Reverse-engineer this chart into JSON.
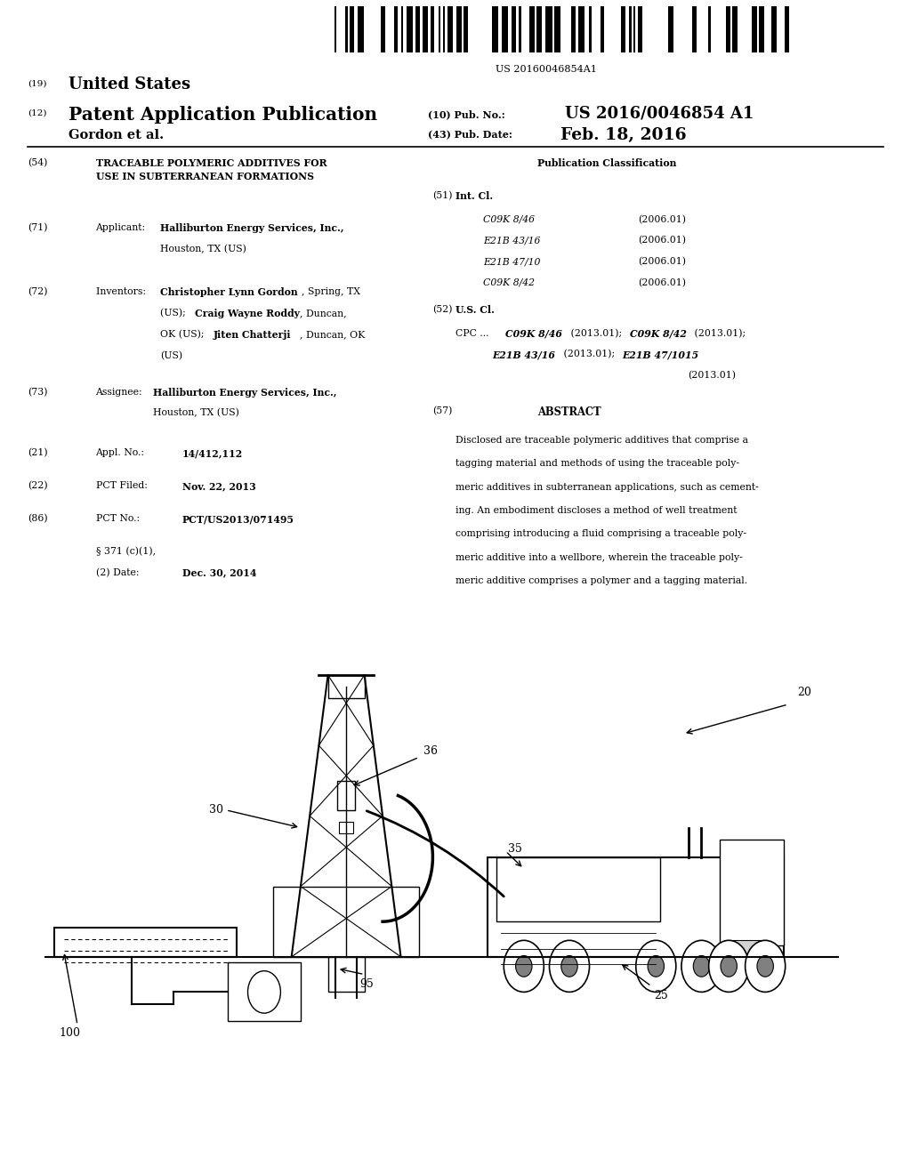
{
  "bg_color": "#ffffff",
  "barcode_text": "US 20160046854A1",
  "header_19": "(19)",
  "header_country": "United States",
  "header_12": "(12)",
  "header_type": "Patent Application Publication",
  "header_10": "(10) Pub. No.:",
  "header_pubno": "US 2016/0046854 A1",
  "header_author": "Gordon et al.",
  "header_43": "(43) Pub. Date:",
  "header_date": "Feb. 18, 2016",
  "right_col_title": "Publication Classification",
  "abstract_label": "(57)",
  "abstract_title": "ABSTRACT",
  "abstract_lines": [
    "Disclosed are traceable polymeric additives that comprise a",
    "tagging material and methods of using the traceable poly-",
    "meric additives in subterranean applications, such as cement-",
    "ing. An embodiment discloses a method of well treatment",
    "comprising introducing a fluid comprising a traceable poly-",
    "meric additive into a wellbore, wherein the traceable poly-",
    "meric additive comprises a polymer and a tagging material."
  ],
  "int_cl": [
    [
      "C09K 8/46",
      "(2006.01)"
    ],
    [
      "E21B 43/16",
      "(2006.01)"
    ],
    [
      "E21B 47/10",
      "(2006.01)"
    ],
    [
      "C09K 8/42",
      "(2006.01)"
    ]
  ],
  "fontsize_body": 7.8,
  "label_fs": 9
}
